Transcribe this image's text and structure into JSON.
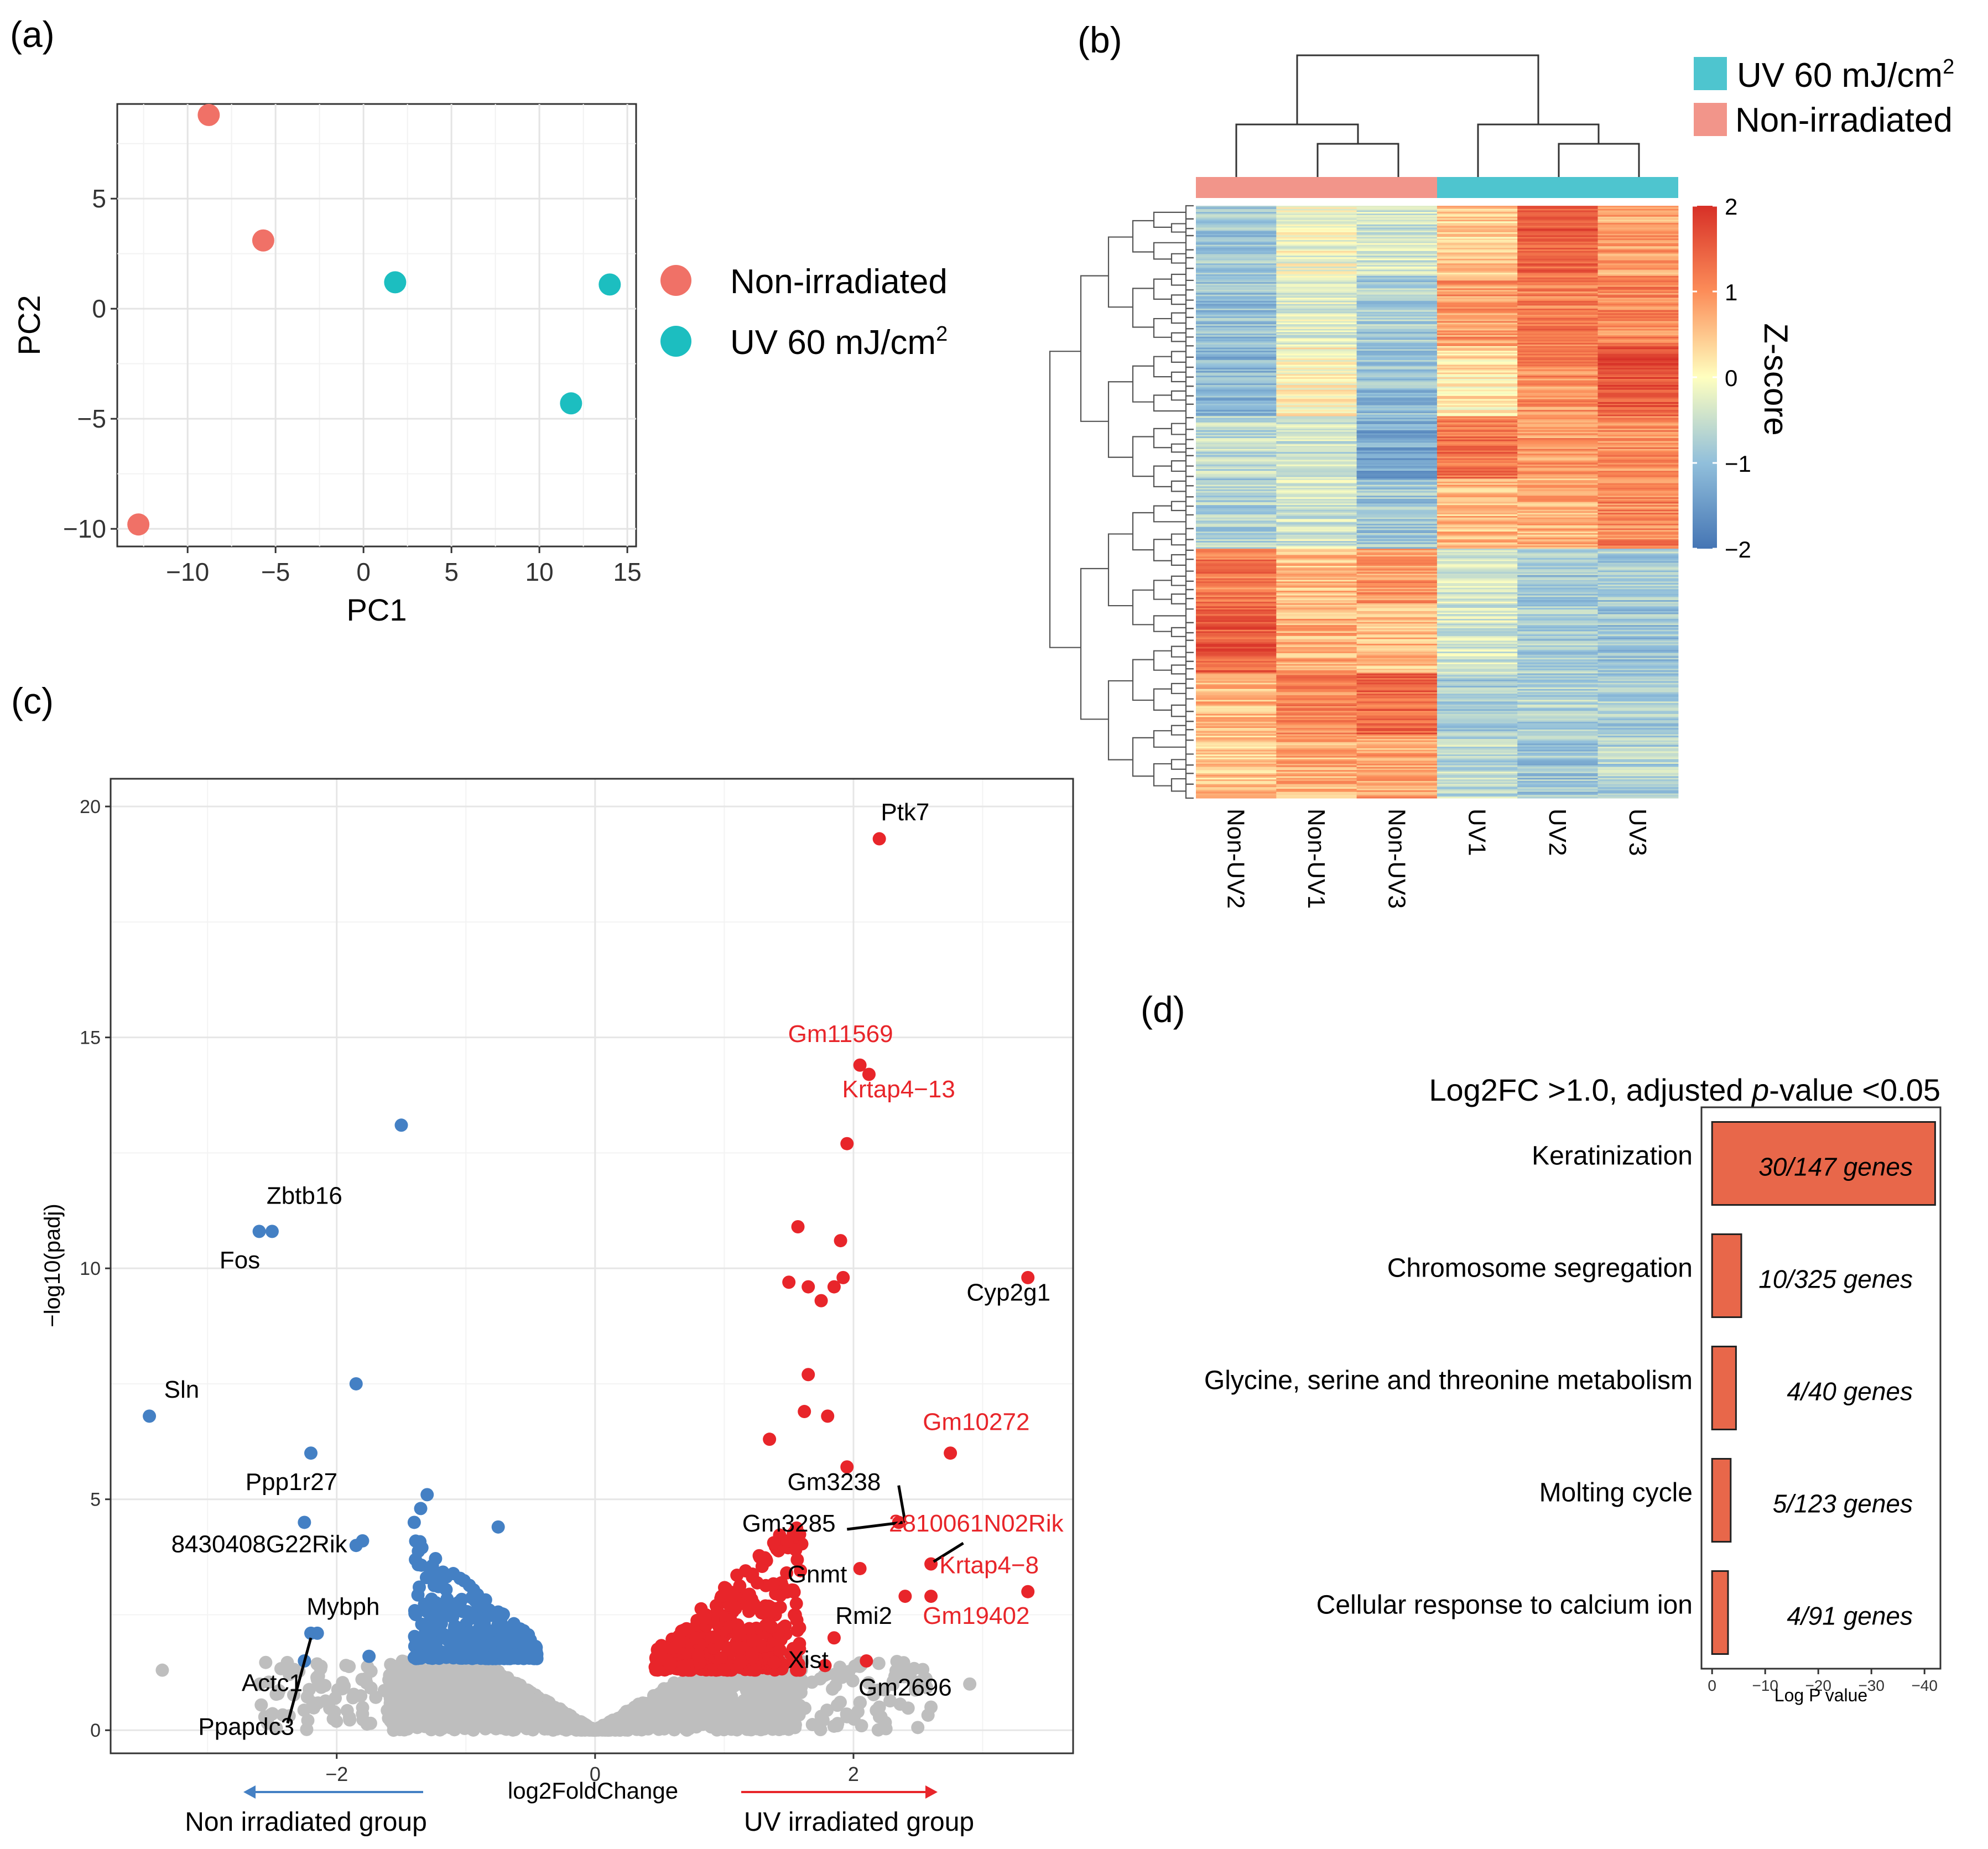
{
  "panels": {
    "a": "(a)",
    "b": "(b)",
    "c": "(c)",
    "d": "(d)"
  },
  "colors": {
    "nonirr": "#F07167",
    "uv": "#1CBEC0",
    "heat_nonirr": "#F2958A",
    "heat_uv": "#4EC5CF",
    "up": "#E8252A",
    "down": "#4480C4",
    "ns": "#BEBEBE",
    "bar": "#E8674A"
  },
  "chart_data": [
    {
      "id": "pca",
      "type": "scatter",
      "xlabel": "PC1",
      "ylabel": "PC2",
      "xlim": [
        -14,
        15.5
      ],
      "ylim": [
        -10.8,
        9.3
      ],
      "xticks": [
        -10,
        -5,
        0,
        5,
        10,
        15
      ],
      "yticks": [
        -10,
        -5,
        0,
        5
      ],
      "xtick_labels": [
        "−10",
        "−5",
        "0",
        "5",
        "10",
        "15"
      ],
      "ytick_labels": [
        "−10",
        "−5",
        "0",
        "5"
      ],
      "legend": [
        "Non-irradiated",
        "UV 60 mJ/cm"
      ],
      "legend_sup": "2",
      "series": [
        {
          "name": "Non-irradiated",
          "points": [
            [
              -8.8,
              8.8
            ],
            [
              -5.7,
              3.1
            ],
            [
              -12.8,
              -9.8
            ]
          ]
        },
        {
          "name": "UV 60 mJ/cm2",
          "points": [
            [
              1.8,
              1.2
            ],
            [
              14.0,
              1.1
            ],
            [
              11.8,
              -4.3
            ]
          ]
        }
      ]
    },
    {
      "id": "heatmap",
      "type": "heatmap",
      "legend": [
        "UV 60 mJ/cm",
        "Non-irradiated"
      ],
      "legend_sup": "2",
      "colorbar_title": "Z-score",
      "colorbar_ticks": [
        2,
        1,
        0,
        -1,
        -2
      ],
      "colorbar_labels": [
        "2",
        "1",
        "0",
        "−1",
        "−2"
      ],
      "samples": [
        "Non-UV2",
        "Non-UV1",
        "Non-UV3",
        "UV1",
        "UV2",
        "UV3"
      ],
      "sample_groups": [
        "Non-irradiated",
        "Non-irradiated",
        "Non-irradiated",
        "UV",
        "UV",
        "UV"
      ],
      "row_blocks": [
        {
          "rows": 45,
          "z": [
            -0.9,
            -0.1,
            -0.4,
            0.4,
            1.5,
            0.8
          ]
        },
        {
          "rows": 45,
          "z": [
            -1.0,
            -0.3,
            -0.8,
            0.9,
            1.2,
            1.1
          ]
        },
        {
          "rows": 45,
          "z": [
            -1.1,
            0.1,
            -1.0,
            0.2,
            1.0,
            1.6
          ]
        },
        {
          "rows": 40,
          "z": [
            -0.6,
            -0.5,
            -1.3,
            1.3,
            0.9,
            1.0
          ]
        },
        {
          "rows": 45,
          "z": [
            -0.7,
            -0.4,
            -0.9,
            0.6,
            0.7,
            1.1
          ]
        },
        {
          "rows": 35,
          "z": [
            1.2,
            0.6,
            0.9,
            -0.3,
            -0.9,
            -0.8
          ]
        },
        {
          "rows": 45,
          "z": [
            1.5,
            0.7,
            0.6,
            -0.4,
            -0.8,
            -0.9
          ]
        },
        {
          "rows": 40,
          "z": [
            0.6,
            1.1,
            1.4,
            -0.8,
            -0.7,
            -0.8
          ]
        },
        {
          "rows": 40,
          "z": [
            0.5,
            0.7,
            0.8,
            -0.6,
            -0.9,
            -0.7
          ]
        }
      ]
    },
    {
      "id": "volcano",
      "type": "scatter",
      "xlabel": "log2FoldChange",
      "ylabel": "−log10(padj)",
      "xlim": [
        -3.75,
        3.7
      ],
      "ylim": [
        -0.5,
        20.6
      ],
      "xticks": [
        -2,
        0,
        2
      ],
      "yticks": [
        0,
        5,
        10,
        15,
        20
      ],
      "xtick_labels": [
        "−2",
        "0",
        "2"
      ],
      "ytick_labels": [
        "0",
        "5",
        "10",
        "15",
        "20"
      ],
      "left_arrow_label": "Non irradiated group",
      "right_arrow_label": "UV irradiated group",
      "series": [
        {
          "name": "down",
          "points": [
            [
              -3.45,
              6.8
            ],
            [
              -1.5,
              13.1
            ],
            [
              -2.5,
              10.8
            ],
            [
              -2.6,
              10.8
            ],
            [
              -1.85,
              7.5
            ],
            [
              -2.2,
              6.0
            ],
            [
              -2.25,
              4.5
            ],
            [
              -1.8,
              4.1
            ],
            [
              -1.85,
              4.0
            ],
            [
              -1.3,
              5.1
            ],
            [
              -1.35,
              4.8
            ],
            [
              -1.4,
              4.5
            ],
            [
              -0.75,
              4.4
            ],
            [
              -2.15,
              2.1
            ],
            [
              -2.25,
              1.5
            ],
            [
              -1.75,
              1.6
            ],
            [
              -2.2,
              2.1
            ]
          ]
        },
        {
          "name": "up",
          "points": [
            [
              2.2,
              19.3
            ],
            [
              2.05,
              14.4
            ],
            [
              2.12,
              14.2
            ],
            [
              1.95,
              12.7
            ],
            [
              3.35,
              9.8
            ],
            [
              1.57,
              10.9
            ],
            [
              1.9,
              10.6
            ],
            [
              1.5,
              9.7
            ],
            [
              1.92,
              9.8
            ],
            [
              1.85,
              9.6
            ],
            [
              1.65,
              9.6
            ],
            [
              1.75,
              9.3
            ],
            [
              1.65,
              7.7
            ],
            [
              1.62,
              6.9
            ],
            [
              1.8,
              6.8
            ],
            [
              2.75,
              6.0
            ],
            [
              1.35,
              6.3
            ],
            [
              1.95,
              5.7
            ],
            [
              2.35,
              4.5
            ],
            [
              2.6,
              3.6
            ],
            [
              2.4,
              2.9
            ],
            [
              3.35,
              3.0
            ],
            [
              2.6,
              2.9
            ],
            [
              2.05,
              3.5
            ],
            [
              1.85,
              2.0
            ],
            [
              1.78,
              1.4
            ],
            [
              2.1,
              1.5
            ]
          ]
        },
        {
          "name": "ns",
          "points": [
            [
              -3.35,
              1.3
            ],
            [
              -2.15,
              1.1
            ],
            [
              2.05,
              0.6
            ],
            [
              2.2,
              0.5
            ],
            [
              2.6,
              0.5
            ],
            [
              2.9,
              1.0
            ],
            [
              1.75,
              0.3
            ]
          ]
        }
      ],
      "cloud": {
        "ns_count": 1700,
        "up_count": 380,
        "down_count": 330,
        "ns_coef": 1.7,
        "up_range": [
          0.45,
          1.6
        ],
        "down_range": [
          -1.4,
          -0.45
        ],
        "y_cut_up": 1.3,
        "y_cut_down": 1.55
      },
      "labels": [
        {
          "text": "Ptk7",
          "x": 2.4,
          "y": 19.7,
          "color": "black"
        },
        {
          "text": "Gm11569",
          "x": 1.9,
          "y": 14.9,
          "color": "red"
        },
        {
          "text": "Krtap4−13",
          "x": 2.35,
          "y": 13.7,
          "color": "red"
        },
        {
          "text": "Cyp2g1",
          "x": 3.2,
          "y": 9.3,
          "color": "black"
        },
        {
          "text": "Gm10272",
          "x": 2.95,
          "y": 6.5,
          "color": "red"
        },
        {
          "text": "Gm3238",
          "x": 1.85,
          "y": 5.2,
          "color": "black"
        },
        {
          "text": "Gm3285",
          "x": 1.5,
          "y": 4.3,
          "color": "black"
        },
        {
          "text": "2810061N02Rik",
          "x": 2.95,
          "y": 4.3,
          "color": "red"
        },
        {
          "text": "Krtap4−8",
          "x": 3.05,
          "y": 3.4,
          "color": "red"
        },
        {
          "text": "Gnmt",
          "x": 1.72,
          "y": 3.2,
          "color": "black"
        },
        {
          "text": "Rmi2",
          "x": 2.08,
          "y": 2.3,
          "color": "black"
        },
        {
          "text": "Gm19402",
          "x": 2.95,
          "y": 2.3,
          "color": "red"
        },
        {
          "text": "Xist",
          "x": 1.65,
          "y": 1.35,
          "color": "black"
        },
        {
          "text": "Gm2696",
          "x": 2.4,
          "y": 0.75,
          "color": "black"
        },
        {
          "text": "Zbtb16",
          "x": -2.25,
          "y": 11.4,
          "color": "black"
        },
        {
          "text": "Fos",
          "x": -2.75,
          "y": 10.0,
          "color": "black"
        },
        {
          "text": "Sln",
          "x": -3.2,
          "y": 7.2,
          "color": "black"
        },
        {
          "text": "Ppp1r27",
          "x": -2.35,
          "y": 5.2,
          "color": "black"
        },
        {
          "text": "8430408G22Rik",
          "x": -2.6,
          "y": 3.85,
          "color": "black"
        },
        {
          "text": "Mybph",
          "x": -1.95,
          "y": 2.5,
          "color": "black"
        },
        {
          "text": "Actc1",
          "x": -2.5,
          "y": 0.85,
          "color": "black"
        },
        {
          "text": "Ppapdc3",
          "x": -2.7,
          "y": -0.1,
          "color": "black"
        }
      ],
      "leader_lines": [
        [
          [
            1.95,
            4.35
          ],
          [
            2.38,
            4.5
          ]
        ],
        [
          [
            2.35,
            5.3
          ],
          [
            2.4,
            4.5
          ]
        ],
        [
          [
            2.85,
            4.05
          ],
          [
            2.62,
            3.65
          ]
        ],
        [
          [
            -2.38,
            0.15
          ],
          [
            -2.2,
            2.0
          ]
        ]
      ]
    },
    {
      "id": "enrichment",
      "type": "bar",
      "title": "Log2FC >1.0, adjusted ",
      "title_italic": "p",
      "title_tail": "-value <0.05",
      "xlabel": "Log P value",
      "xlim": [
        2,
        -43
      ],
      "xticks": [
        0,
        -10,
        -20,
        -30,
        -40
      ],
      "xtick_labels": [
        "0",
        "−10",
        "−20",
        "−30",
        "−40"
      ],
      "categories": [
        "Keratinization",
        "Chromosome segregation",
        "Glycine, serine and threonine metabolism",
        "Molting cycle",
        "Cellular response to calcium ion"
      ],
      "values": [
        -42,
        -5.5,
        -4.5,
        -3.5,
        -3.0
      ],
      "annotations": [
        "30/147 genes",
        "10/325 genes",
        "4/40 genes",
        "5/123 genes",
        "4/91 genes"
      ]
    }
  ]
}
